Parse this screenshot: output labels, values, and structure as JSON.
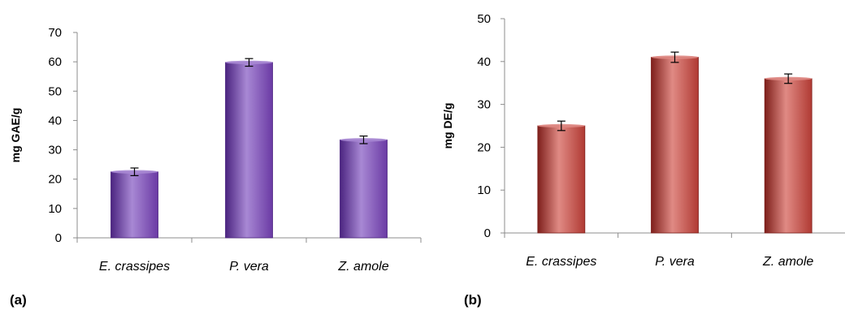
{
  "panels": {
    "a": "(a)",
    "b": "(b)"
  },
  "chart_data": [
    {
      "type": "bar",
      "panel": "(a)",
      "categories": [
        "E. crassipes",
        "P. vera",
        "Z. amole"
      ],
      "values": [
        22.5,
        59.8,
        33.4
      ],
      "errors": [
        1.3,
        1.3,
        1.3
      ],
      "ylabel": "mg GAE/g",
      "ylim": [
        0,
        70
      ],
      "yticks": [
        0,
        10,
        20,
        30,
        40,
        50,
        60,
        70
      ],
      "grid": false,
      "colors": {
        "bar": "#6a3aa4",
        "bar_light": "#a888d4",
        "bar_dark": "#4b2480"
      }
    },
    {
      "type": "bar",
      "panel": "(b)",
      "categories": [
        "E. crassipes",
        "P. vera",
        "Z. amole"
      ],
      "values": [
        25.0,
        41.0,
        36.0
      ],
      "errors": [
        1.1,
        1.2,
        1.1
      ],
      "ylabel": "mg DE/g",
      "ylim": [
        0,
        50
      ],
      "yticks": [
        0,
        10,
        20,
        30,
        40,
        50
      ],
      "grid": false,
      "colors": {
        "bar": "#b03a33",
        "bar_light": "#e08a84",
        "bar_dark": "#7e1f1b"
      }
    }
  ]
}
